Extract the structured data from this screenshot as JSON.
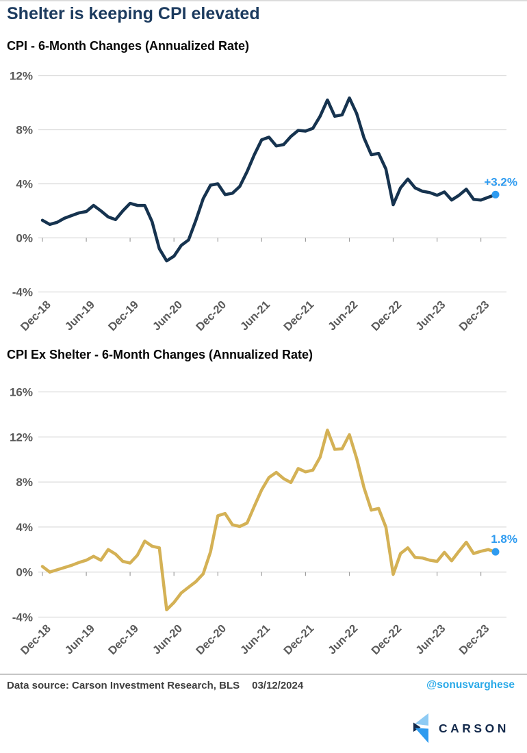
{
  "page": {
    "title": "Shelter is keeping CPI elevated",
    "background": "#FFFFFF"
  },
  "colors": {
    "accent_blue": "#2E9BF0",
    "navy_line": "#16334F",
    "gold_line": "#D4B155",
    "grid": "#DCDCDC",
    "tick": "#9E9E9E",
    "axis_text": "#595959",
    "title_navy": "#1B3A5E",
    "footer_text": "#3F3F3F",
    "handle_blue": "#29A9E8",
    "logo_navy": "#13294B",
    "logo_light_blue": "#8ECBF4",
    "logo_mid_blue": "#2E9BEF"
  },
  "chart_data": [
    {
      "type": "line",
      "title": "CPI - 6-Month Changes (Annualized Rate)",
      "series_name": "CPI 6-month change, annualized",
      "period": {
        "start": "Dec-18",
        "end": "Feb-24",
        "frequency": "monthly"
      },
      "x_tick_labels": [
        "Dec-18",
        "Jun-19",
        "Dec-19",
        "Jun-20",
        "Dec-20",
        "Jun-21",
        "Dec-21",
        "Jun-22",
        "Dec-22",
        "Jun-23",
        "Dec-23"
      ],
      "y_tick_labels": [
        "12%",
        "8%",
        "4%",
        "0%",
        "-4%"
      ],
      "y_ticks_pct": [
        12,
        8,
        4,
        0,
        -4
      ],
      "ylim": [
        -4.5,
        13
      ],
      "grid": "horizontal",
      "legend": "none",
      "line_color": "#16334F",
      "end_label": "+3.2%",
      "last_value": 3.2,
      "values": [
        1.3,
        1.0,
        1.15,
        1.45,
        1.65,
        1.85,
        1.95,
        2.4,
        2.0,
        1.55,
        1.35,
        2.0,
        2.55,
        2.4,
        2.4,
        1.2,
        -0.8,
        -1.7,
        -1.35,
        -0.55,
        -0.15,
        1.3,
        2.9,
        3.9,
        4.0,
        3.2,
        3.3,
        3.8,
        4.9,
        6.15,
        7.25,
        7.45,
        6.8,
        6.9,
        7.5,
        7.95,
        7.9,
        8.1,
        9.0,
        10.2,
        9.0,
        9.1,
        10.35,
        9.2,
        7.4,
        6.15,
        6.25,
        5.1,
        2.45,
        3.7,
        4.35,
        3.7,
        3.45,
        3.35,
        3.15,
        3.4,
        2.8,
        3.15,
        3.6,
        2.85,
        2.8,
        3.0,
        3.2
      ]
    },
    {
      "type": "line",
      "title": "CPI Ex Shelter - 6-Month Changes (Annualized Rate)",
      "series_name": "CPI ex shelter 6-month change, annualized",
      "period": {
        "start": "Dec-18",
        "end": "Feb-24",
        "frequency": "monthly"
      },
      "x_tick_labels": [
        "Dec-18",
        "Jun-19",
        "Dec-19",
        "Jun-20",
        "Dec-20",
        "Jun-21",
        "Dec-21",
        "Jun-22",
        "Dec-22",
        "Jun-23",
        "Dec-23"
      ],
      "y_tick_labels": [
        "16%",
        "12%",
        "8%",
        "4%",
        "0%",
        "-4%"
      ],
      "y_ticks_pct": [
        16,
        12,
        8,
        4,
        0,
        -4
      ],
      "ylim": [
        -4.5,
        17
      ],
      "grid": "horizontal",
      "legend": "none",
      "line_color": "#D4B155",
      "end_label": "1.8%",
      "last_value": 1.8,
      "values": [
        0.5,
        0.0,
        0.2,
        0.4,
        0.6,
        0.85,
        1.05,
        1.4,
        1.05,
        2.0,
        1.6,
        0.95,
        0.8,
        1.5,
        2.75,
        2.3,
        2.15,
        -3.35,
        -2.7,
        -1.85,
        -1.35,
        -0.85,
        -0.15,
        1.8,
        5.0,
        5.2,
        4.2,
        4.05,
        4.35,
        5.85,
        7.3,
        8.4,
        8.85,
        8.3,
        7.95,
        9.2,
        8.9,
        9.05,
        10.2,
        12.6,
        10.9,
        10.95,
        12.2,
        10.1,
        7.5,
        5.5,
        5.65,
        4.0,
        -0.2,
        1.65,
        2.15,
        1.3,
        1.25,
        1.05,
        0.95,
        1.75,
        1.0,
        1.85,
        2.65,
        1.65,
        1.85,
        2.0,
        1.8
      ]
    }
  ],
  "footer": {
    "source": "Data source: Carson Investment Research, BLS",
    "date": "03/12/2024",
    "handle": "@sonusvarghese"
  },
  "logo": {
    "text": "CARSON"
  }
}
